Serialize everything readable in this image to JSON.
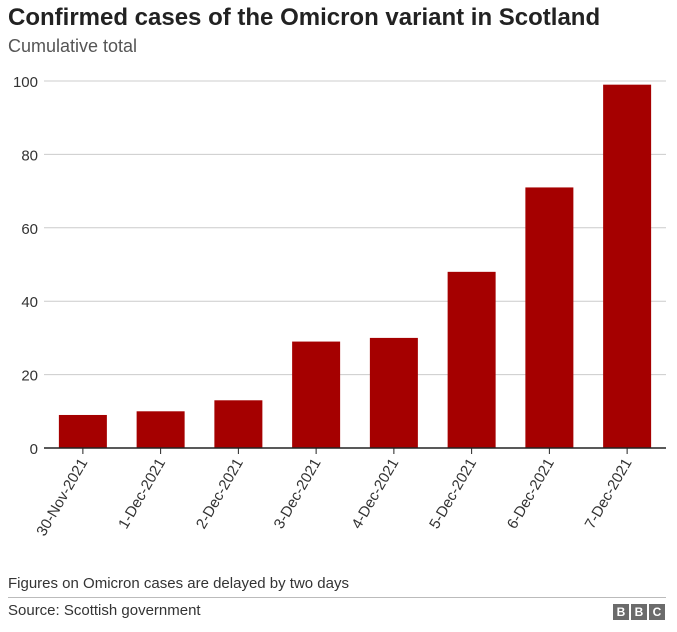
{
  "chart_data": {
    "type": "bar",
    "title": "Confirmed cases of the Omicron variant in Scotland",
    "subtitle": "Cumulative total",
    "categories": [
      "30-Nov-2021",
      "1-Dec-2021",
      "2-Dec-2021",
      "3-Dec-2021",
      "4-Dec-2021",
      "5-Dec-2021",
      "6-Dec-2021",
      "7-Dec-2021"
    ],
    "values": [
      9,
      10,
      13,
      29,
      30,
      48,
      71,
      99
    ],
    "ylim": [
      0,
      100
    ],
    "yticks": [
      0,
      20,
      40,
      60,
      80,
      100
    ],
    "grid": true,
    "bar_color": "#a50000"
  },
  "footer": {
    "note": "Figures on Omicron cases are delayed by two days",
    "source": "Source: Scottish government",
    "logo": [
      "B",
      "B",
      "C"
    ]
  }
}
